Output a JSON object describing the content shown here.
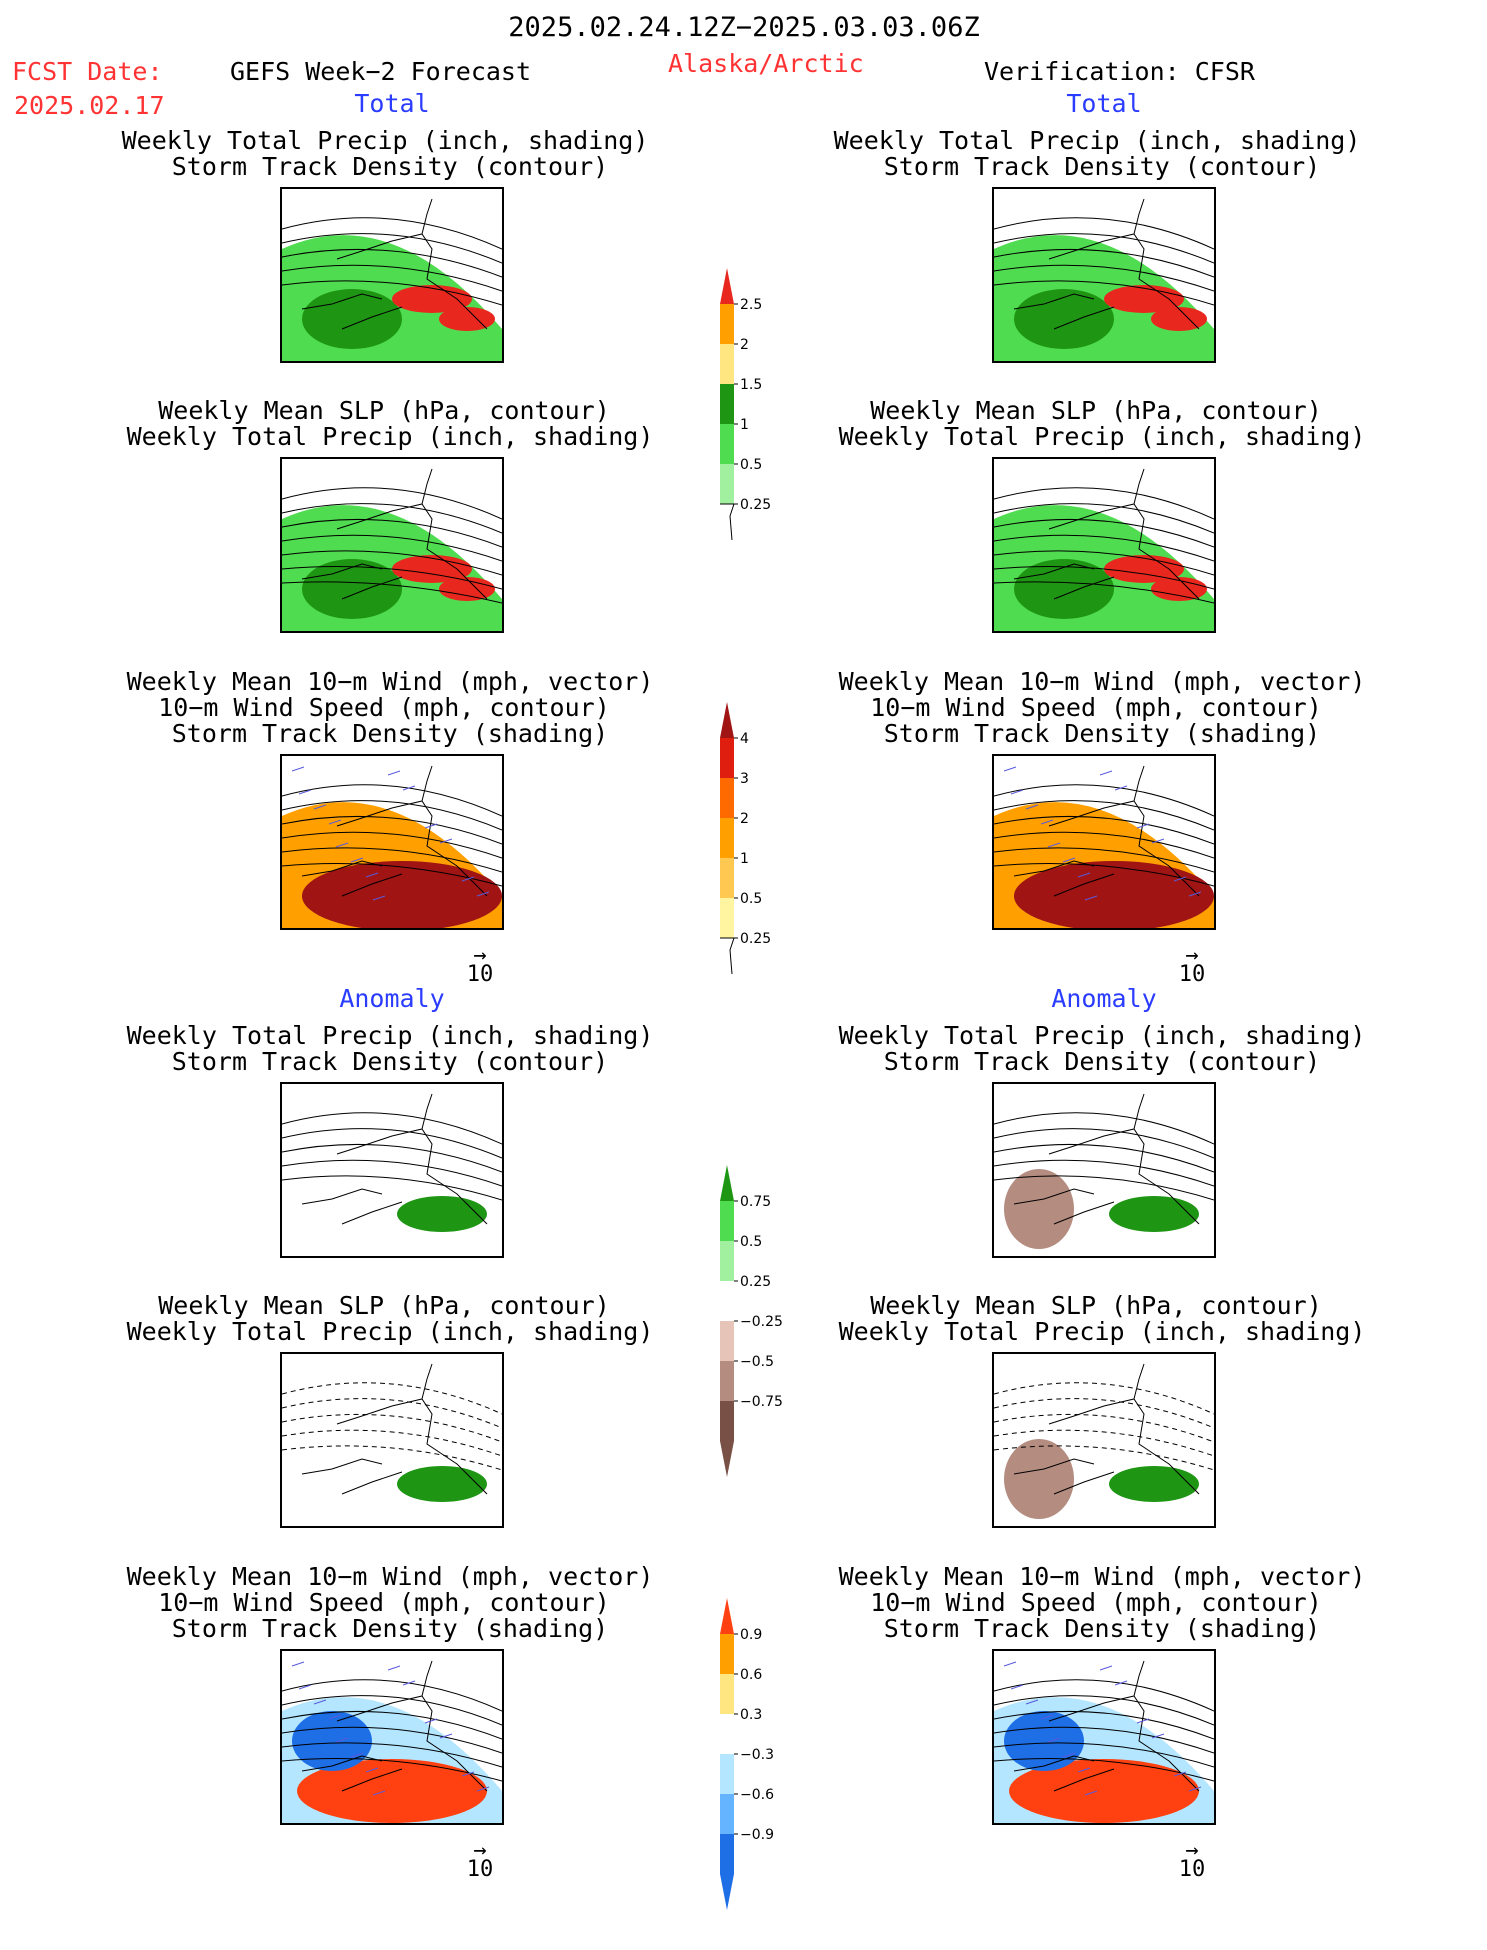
{
  "header": {
    "period": "2025.02.24.12Z−2025.03.03.06Z",
    "fcst_label": "FCST Date:",
    "fcst_date": "2025.02.17",
    "model": "GEFS Week−2 Forecast",
    "region": "Alaska/Arctic",
    "verification": "Verification: CFSR"
  },
  "sections": {
    "total": "Total",
    "anomaly": "Anomaly"
  },
  "titles": {
    "precip_a": "Weekly Total Precip (inch, shading)",
    "storm_b": "Storm Track Density (contour)",
    "slp_a": "Weekly Mean SLP (hPa, contour)",
    "precip_b": "Weekly Total Precip (inch, shading)",
    "wind_a": "Weekly Mean 10−m Wind (mph, vector)",
    "speed_b": "10−m Wind Speed (mph, contour)",
    "storm_c": "Storm Track Density (shading)"
  },
  "vector_ref": "10",
  "colorbars": [
    {
      "name": "precip-total",
      "labels": [
        "2.5",
        "2",
        "1.5",
        "1",
        "0.5",
        "0.25"
      ],
      "colors": [
        "#e8281e",
        "#ffa000",
        "#ffe680",
        "#1e9614",
        "#50dc50",
        "#a0f0a0"
      ]
    },
    {
      "name": "storm-total",
      "labels": [
        "4",
        "3",
        "2",
        "1",
        "0.5",
        "0.25"
      ],
      "colors": [
        "#a01414",
        "#e01e10",
        "#ff6a00",
        "#ffa000",
        "#ffc850",
        "#fff5a0"
      ]
    },
    {
      "name": "precip-anom",
      "labels": [
        "0.75",
        "0.5",
        "0.25",
        "−0.25",
        "−0.5",
        "−0.75"
      ],
      "colors": [
        "#1e9614",
        "#50dc50",
        "#a0f0a0",
        "#ffffff",
        "#e6c4b8",
        "#b48c80",
        "#785046"
      ]
    },
    {
      "name": "storm-anom",
      "labels": [
        "0.9",
        "0.6",
        "0.3",
        "−0.3",
        "−0.6",
        "−0.9"
      ],
      "colors": [
        "#ff4010",
        "#ffa000",
        "#ffe680",
        "#ffffff",
        "#b4e6ff",
        "#64b4ff",
        "#1e6ee6"
      ]
    }
  ],
  "colors": {
    "precip_green": "#50dc50",
    "precip_dark_green": "#1e9614",
    "precip_red": "#e8281e",
    "storm_darkred": "#a01414",
    "anom_brown": "#b48c80",
    "anom_blue": "#1e6ee6",
    "header_red": "#ff3333",
    "section_blue": "#2a3cff"
  }
}
